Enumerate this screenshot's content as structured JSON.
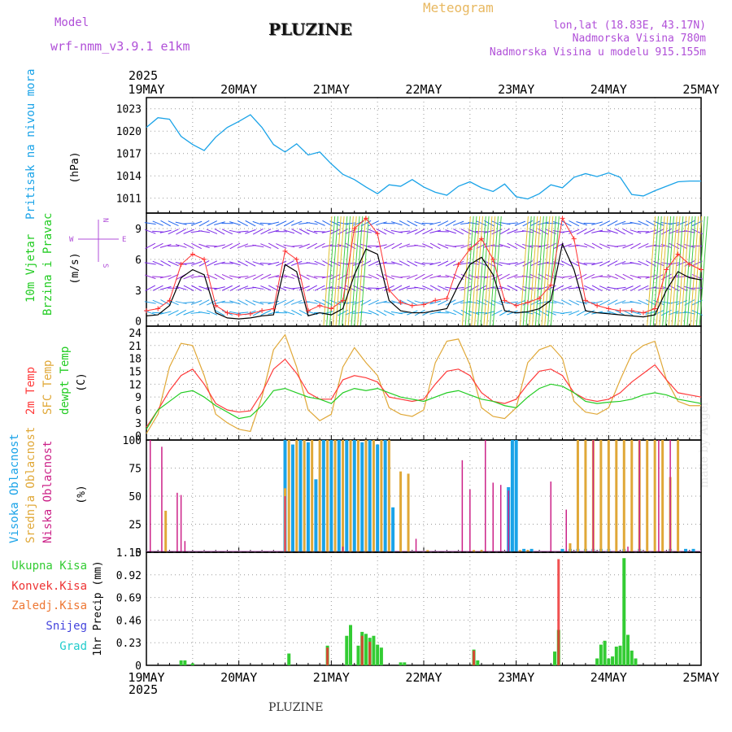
{
  "header": {
    "model_label": "Model",
    "model_name": "wrf-nmm_v3.9.1  e1km",
    "station": "PLUZINE",
    "title": "Meteogram",
    "lonlat": "lon,lat (18.83E, 43.17N)",
    "elevation": "Nadmorska Visina 780m",
    "model_elevation": "Nadmorska Visina u modelu 915.155m",
    "watermark": "made by Angel",
    "footer_station": "PLUZINE"
  },
  "time_axis": {
    "year": "2025",
    "labels": [
      "19MAY",
      "20MAY",
      "21MAY",
      "22MAY",
      "23MAY",
      "24MAY",
      "25MAY"
    ]
  },
  "colors": {
    "pressure": "#1aa3e8",
    "wind_speed": "#000000",
    "gust": "#ff3030",
    "t2m": "#ff3a3a",
    "sfc": "#e0a838",
    "dewpt": "#22cc22",
    "high_cloud": "#1aa3e8",
    "mid_cloud": "#e0a838",
    "low_cloud": "#cc2288",
    "total_precip": "#33cc33",
    "conv_precip": "#ee3333",
    "frozen_precip": "#ee7733",
    "snow": "#4444dd",
    "graupel": "#22cccc"
  },
  "panels": {
    "pressure": {
      "label": "Pritisak na nivou mora",
      "unit": "(hPa)",
      "ticks": [
        "1023",
        "1020",
        "1017",
        "1014",
        "1011"
      ]
    },
    "wind": {
      "label1": "10m Vjetar",
      "label2": "Brzina i Pravac",
      "unit": "(m/s)",
      "ticks": [
        "9",
        "6",
        "3",
        "0"
      ],
      "compass_w": "W",
      "compass_e": "E",
      "compass_n": "N",
      "compass_s": "S"
    },
    "temp": {
      "label1": "2m Temp",
      "label2": "SFC Temp",
      "label3": "dewpt Temp",
      "unit": "(C)",
      "ticks": [
        "24",
        "21",
        "18",
        "15",
        "12",
        "9",
        "6",
        "3",
        "0"
      ]
    },
    "cloud": {
      "label1": "Visoka Oblacnost",
      "label2": "Srednja Oblacnost",
      "label3": "Niska Oblacnost",
      "unit": "(%)",
      "ticks": [
        "100",
        "75",
        "50",
        "25",
        "0"
      ]
    },
    "precip": {
      "label": "1hr Precip (mm)",
      "ticks": [
        "1.15",
        "0.92",
        "0.69",
        "0.46",
        "0.23",
        "0"
      ],
      "legend": [
        "Ukupna Kisa",
        "Konvek.Kisa",
        "Zaledj.Kisa",
        "Snijeg",
        "Grad"
      ]
    }
  },
  "chart_data": [
    {
      "type": "line",
      "title": "Pritisak na nivou mora",
      "ylabel": "(hPa)",
      "ylim": [
        1009,
        1024.5
      ],
      "xlim": [
        0,
        144
      ],
      "x": [
        0,
        3,
        6,
        9,
        12,
        15,
        18,
        21,
        24,
        27,
        30,
        33,
        36,
        39,
        42,
        45,
        48,
        51,
        54,
        57,
        60,
        63,
        66,
        69,
        72,
        75,
        78,
        81,
        84,
        87,
        90,
        93,
        96,
        99,
        102,
        105,
        108,
        111,
        114,
        117,
        120,
        123,
        126,
        129,
        132,
        135,
        138,
        141,
        144
      ],
      "series": [
        {
          "values": [
            1020.5,
            1021.8,
            1021.6,
            1019.3,
            1018.2,
            1017.4,
            1019.2,
            1020.5,
            1021.3,
            1022.2,
            1020.5,
            1018.2,
            1017.2,
            1018.3,
            1016.8,
            1017.2,
            1015.6,
            1014.2,
            1013.5,
            1012.5,
            1011.6,
            1012.8,
            1012.6,
            1013.5,
            1012.5,
            1011.8,
            1011.4,
            1012.6,
            1013.2,
            1012.4,
            1011.9,
            1012.9,
            1011.2,
            1010.9,
            1011.6,
            1012.8,
            1012.4,
            1013.8,
            1014.3,
            1013.9,
            1014.4,
            1013.8,
            1011.5,
            1011.3,
            1012.0,
            1012.6,
            1013.2,
            1013.3,
            1013.3
          ]
        }
      ]
    },
    {
      "type": "line",
      "title": "10m Vjetar Brzina i Pravac",
      "ylabel": "(m/s)",
      "ylim": [
        -0.5,
        10.5
      ],
      "xlim": [
        0,
        144
      ],
      "x": [
        0,
        3,
        6,
        9,
        12,
        15,
        18,
        21,
        24,
        27,
        30,
        33,
        36,
        39,
        42,
        45,
        48,
        51,
        54,
        57,
        60,
        63,
        66,
        69,
        72,
        75,
        78,
        81,
        84,
        87,
        90,
        93,
        96,
        99,
        102,
        105,
        108,
        111,
        114,
        117,
        120,
        123,
        126,
        129,
        132,
        135,
        138,
        141,
        144
      ],
      "series": [
        {
          "values": [
            0.5,
            0.6,
            1.5,
            4.2,
            5.0,
            4.5,
            0.8,
            0.3,
            0.2,
            0.3,
            0.5,
            0.6,
            5.5,
            4.8,
            0.5,
            0.8,
            0.6,
            1.2,
            4.5,
            7.0,
            6.5,
            2.0,
            1.0,
            0.8,
            0.8,
            1.0,
            1.2,
            3.5,
            5.5,
            6.2,
            4.5,
            1.0,
            0.8,
            0.9,
            1.2,
            2.0,
            7.5,
            5.0,
            1.0,
            0.8,
            0.7,
            0.6,
            0.5,
            0.4,
            0.6,
            3.0,
            4.8,
            4.2,
            4.0
          ]
        },
        {
          "values": [
            1.0,
            1.2,
            2.0,
            5.5,
            6.5,
            6.0,
            1.5,
            0.8,
            0.6,
            0.7,
            1.0,
            1.2,
            6.8,
            6.0,
            1.0,
            1.5,
            1.2,
            2.0,
            9.0,
            10.0,
            8.5,
            3.0,
            1.8,
            1.5,
            1.6,
            2.0,
            2.2,
            5.5,
            7.0,
            8.0,
            6.0,
            2.0,
            1.5,
            1.8,
            2.2,
            3.5,
            10.0,
            8.0,
            2.0,
            1.5,
            1.2,
            1.0,
            1.0,
            0.8,
            1.2,
            5.0,
            6.5,
            5.5,
            5.0
          ]
        }
      ]
    },
    {
      "type": "line",
      "title": "2m Temp / SFC Temp / dewpt Temp",
      "ylabel": "(C)",
      "ylim": [
        -1,
        25.5
      ],
      "xlim": [
        0,
        144
      ],
      "x": [
        0,
        3,
        6,
        9,
        12,
        15,
        18,
        21,
        24,
        27,
        30,
        33,
        36,
        39,
        42,
        45,
        48,
        51,
        54,
        57,
        60,
        63,
        66,
        69,
        72,
        75,
        78,
        81,
        84,
        87,
        90,
        93,
        96,
        99,
        102,
        105,
        108,
        111,
        114,
        117,
        120,
        123,
        126,
        129,
        132,
        135,
        138,
        141,
        144
      ],
      "series": [
        {
          "values": [
            2.0,
            6.0,
            10.5,
            14.0,
            15.5,
            12.0,
            7.5,
            6.0,
            5.5,
            5.8,
            10.0,
            15.5,
            17.8,
            14.5,
            10.0,
            8.5,
            8.5,
            13.0,
            14.0,
            13.5,
            12.5,
            9.0,
            8.5,
            8.0,
            8.5,
            12.0,
            15.0,
            15.5,
            14.0,
            10.0,
            8.0,
            7.5,
            8.5,
            12.0,
            15.0,
            15.5,
            14.0,
            10.0,
            8.5,
            8.0,
            8.5,
            10.0,
            12.5,
            14.5,
            16.5,
            13.0,
            10.0,
            9.5,
            9.0
          ]
        },
        {
          "values": [
            0.5,
            5.0,
            16.0,
            21.5,
            21.0,
            14.0,
            5.0,
            3.0,
            1.5,
            1.0,
            9.0,
            20.0,
            23.5,
            16.0,
            6.0,
            3.5,
            5.0,
            16.0,
            20.5,
            17.0,
            14.0,
            6.5,
            5.0,
            4.5,
            6.0,
            17.0,
            22.0,
            22.5,
            16.5,
            6.5,
            4.5,
            4.0,
            6.5,
            17.0,
            20.0,
            21.0,
            18.0,
            8.0,
            5.5,
            5.0,
            6.5,
            13.0,
            19.0,
            21.0,
            22.0,
            13.0,
            8.0,
            7.0,
            7.0
          ]
        },
        {
          "values": [
            1.5,
            6.0,
            8.0,
            10.0,
            10.5,
            9.0,
            7.0,
            5.5,
            4.0,
            4.5,
            7.0,
            10.5,
            11.0,
            10.0,
            9.0,
            8.5,
            7.5,
            10.0,
            11.0,
            10.5,
            11.0,
            10.0,
            9.0,
            8.5,
            8.0,
            9.0,
            10.0,
            10.5,
            9.5,
            8.5,
            8.0,
            7.0,
            6.5,
            9.0,
            11.0,
            12.0,
            11.5,
            10.0,
            8.0,
            7.5,
            7.8,
            8.0,
            8.5,
            9.5,
            10.0,
            9.5,
            8.5,
            8.0,
            7.5
          ]
        }
      ]
    },
    {
      "type": "bar",
      "title": "Visoka / Srednja / Niska Oblacnost",
      "ylabel": "(%)",
      "ylim": [
        0,
        100
      ],
      "xlim": [
        0,
        144
      ],
      "series": [
        {
          "name": "Visoka Oblacnost",
          "x": [
            36,
            38,
            40,
            42,
            44,
            46,
            48,
            50,
            52,
            54,
            56,
            58,
            60,
            62,
            64,
            94,
            95,
            96,
            98,
            100,
            108,
            110,
            112,
            114,
            116,
            118,
            120,
            124,
            128,
            136,
            140,
            142
          ],
          "values": [
            100,
            96,
            100,
            98,
            65,
            100,
            100,
            100,
            100,
            100,
            98,
            100,
            96,
            100,
            40,
            58,
            100,
            100,
            3,
            3,
            3,
            3,
            3,
            3,
            3,
            3,
            3,
            3,
            3,
            3,
            3,
            3
          ]
        },
        {
          "name": "Srednja Oblacnost",
          "x": [
            5,
            36,
            37,
            39,
            41,
            43,
            45,
            47,
            49,
            51,
            53,
            55,
            57,
            59,
            61,
            63,
            66,
            68,
            73,
            85,
            87,
            97,
            99,
            110,
            112,
            114,
            116,
            118,
            120,
            122,
            124,
            126,
            128,
            130,
            132,
            134,
            136,
            138
          ],
          "values": [
            37,
            57,
            100,
            100,
            100,
            100,
            100,
            100,
            100,
            100,
            100,
            100,
            100,
            100,
            100,
            100,
            72,
            70,
            2,
            2,
            2,
            2,
            2,
            8,
            100,
            100,
            100,
            100,
            100,
            100,
            100,
            100,
            100,
            100,
            100,
            100,
            67,
            100
          ]
        },
        {
          "name": "Niska Oblacnost",
          "x": [
            1,
            4,
            8,
            9,
            10,
            36,
            51,
            70,
            82,
            84,
            88,
            90,
            92,
            94,
            105,
            109,
            116,
            125,
            128,
            133,
            136
          ],
          "values": [
            100,
            94,
            53,
            51,
            10,
            50,
            5,
            12,
            82,
            56,
            100,
            62,
            60,
            55,
            63,
            38,
            100,
            5,
            100,
            100,
            100
          ]
        }
      ]
    },
    {
      "type": "bar",
      "title": "1hr Precip (mm)",
      "ylabel": "1hr Precip (mm)",
      "ylim": [
        0,
        1.15
      ],
      "xlim": [
        0,
        144
      ],
      "series": [
        {
          "name": "Ukupna Kisa",
          "x": [
            9,
            10,
            12,
            37,
            47,
            52,
            53,
            55,
            56,
            57,
            58,
            59,
            60,
            61,
            66,
            67,
            85,
            86,
            106,
            107,
            117,
            118,
            119,
            120,
            121,
            122,
            123,
            124,
            125,
            126,
            127
          ],
          "values": [
            0.05,
            0.05,
            0.02,
            0.12,
            0.2,
            0.3,
            0.41,
            0.2,
            0.34,
            0.32,
            0.28,
            0.3,
            0.21,
            0.18,
            0.03,
            0.03,
            0.16,
            0.05,
            0.14,
            0.36,
            0.07,
            0.21,
            0.25,
            0.07,
            0.09,
            0.19,
            0.2,
            1.09,
            0.31,
            0.15,
            0.07
          ]
        },
        {
          "name": "Konvek.Kisa",
          "x": [
            47,
            56,
            58,
            85,
            107
          ],
          "values": [
            0.18,
            0.3,
            0.24,
            0.15,
            1.08
          ]
        }
      ]
    }
  ]
}
